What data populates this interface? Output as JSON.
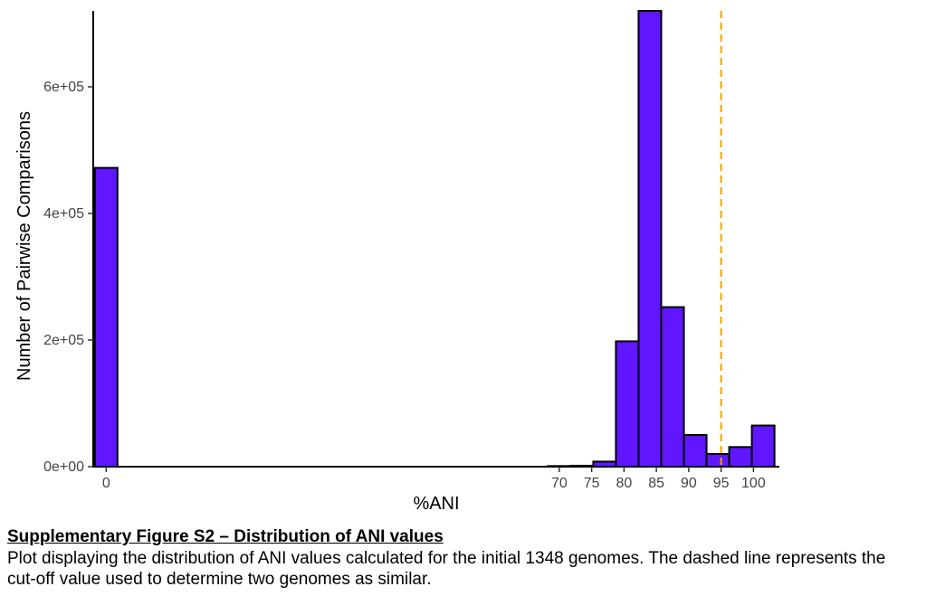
{
  "chart_data": {
    "type": "bar",
    "title": "",
    "xlabel": "%ANI",
    "ylabel": "Number of Pairwise Comparisons",
    "xlim": [
      -2,
      104
    ],
    "ylim": [
      0,
      720000
    ],
    "x_ticks": [
      0,
      70,
      75,
      80,
      85,
      90,
      95,
      100
    ],
    "x_tick_labels": [
      "0",
      "70",
      "75",
      "80",
      "85",
      "90",
      "95",
      "100"
    ],
    "y_ticks": [
      0,
      200000,
      400000,
      600000
    ],
    "y_tick_labels": [
      "0e+00",
      "2e+05",
      "4e+05",
      "6e+05"
    ],
    "bin_width": 3.5,
    "bins": [
      {
        "x": 0,
        "count": 472000
      },
      {
        "x": 70,
        "count": 1000
      },
      {
        "x": 73.5,
        "count": 1500
      },
      {
        "x": 77,
        "count": 8000
      },
      {
        "x": 80.5,
        "count": 198000
      },
      {
        "x": 84,
        "count": 720000
      },
      {
        "x": 87.5,
        "count": 252000
      },
      {
        "x": 91,
        "count": 50000
      },
      {
        "x": 94.5,
        "count": 20000
      },
      {
        "x": 98,
        "count": 31000
      },
      {
        "x": 101.5,
        "count": 65000
      }
    ],
    "cutoff": 95,
    "grid": false,
    "colors": {
      "bar_fill": "#6016FF",
      "bar_stroke": "#000000",
      "cutoff_line": "#F2A400"
    }
  },
  "caption": {
    "title": "Supplementary Figure S2 – Distribution of ANI values",
    "body": "Plot displaying the distribution of ANI values calculated for the initial 1348 genomes. The dashed line represents the cut-off value used to determine two genomes as similar."
  }
}
